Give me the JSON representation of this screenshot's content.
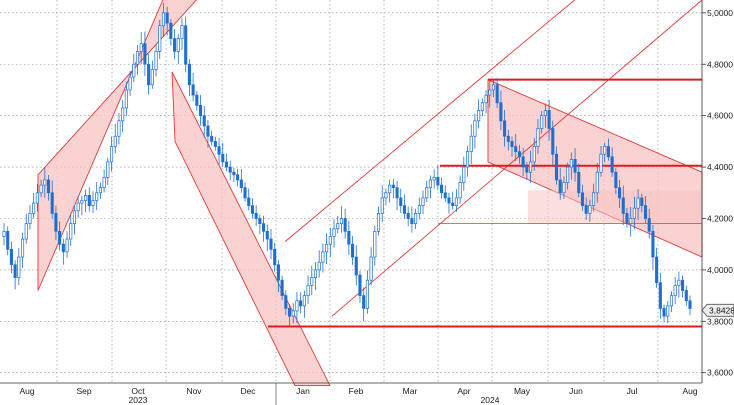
{
  "chart_data": {
    "type": "candlestick",
    "title": "",
    "xlabel": "",
    "ylabel": "",
    "ylim": [
      3.56,
      5.05
    ],
    "yticks": [
      {
        "value": 3.6,
        "label": "3,6000"
      },
      {
        "value": 3.8,
        "label": "3,8000"
      },
      {
        "value": 4.0,
        "label": "4,0000"
      },
      {
        "value": 4.2,
        "label": "4,2000"
      },
      {
        "value": 4.4,
        "label": "4,4000"
      },
      {
        "value": 4.6,
        "label": "4,6000"
      },
      {
        "value": 4.8,
        "label": "4,8000"
      },
      {
        "value": 5.0,
        "label": "5,0000"
      }
    ],
    "xticks": [
      "Aug",
      "Sep",
      "Oct",
      "Nov",
      "Dec",
      "Jan",
      "Feb",
      "Mar",
      "Apr",
      "May",
      "Jun",
      "Jul",
      "Aug"
    ],
    "years": [
      {
        "label": "2023",
        "under": "Oct"
      },
      {
        "label": "2024",
        "under": "Apr"
      }
    ],
    "last_price": {
      "value": 3.8428,
      "label": "3,8428"
    },
    "grid": true,
    "colors": {
      "up": "#1f6fd1",
      "down": "#1f6fd1",
      "channel_fill": "#f8c3c3",
      "channel_line": "#e03a3a",
      "level_line": "#d81e1e",
      "grid": "#8a8a8a"
    },
    "closes": [
      4.15,
      4.08,
      4.02,
      3.97,
      4.05,
      4.12,
      4.18,
      4.22,
      4.26,
      4.3,
      4.33,
      4.35,
      4.3,
      4.22,
      4.15,
      4.1,
      4.07,
      4.12,
      4.18,
      4.23,
      4.26,
      4.27,
      4.29,
      4.25,
      4.27,
      4.3,
      4.32,
      4.36,
      4.42,
      4.48,
      4.52,
      4.58,
      4.63,
      4.7,
      4.75,
      4.8,
      4.85,
      4.88,
      4.8,
      4.72,
      4.78,
      4.85,
      4.95,
      5.0,
      4.96,
      4.9,
      4.85,
      4.9,
      4.95,
      4.8,
      4.72,
      4.68,
      4.64,
      4.6,
      4.56,
      4.52,
      4.5,
      4.48,
      4.45,
      4.42,
      4.4,
      4.38,
      4.37,
      4.35,
      4.32,
      4.28,
      4.25,
      4.22,
      4.2,
      4.18,
      4.15,
      4.12,
      4.08,
      4.02,
      3.96,
      3.9,
      3.85,
      3.82,
      3.84,
      3.88,
      3.86,
      3.9,
      3.94,
      3.97,
      4.0,
      4.03,
      4.07,
      4.1,
      4.13,
      4.16,
      4.18,
      4.2,
      4.15,
      4.1,
      4.05,
      3.98,
      3.9,
      3.85,
      3.96,
      4.05,
      4.15,
      4.22,
      4.28,
      4.3,
      4.33,
      4.32,
      4.28,
      4.25,
      4.22,
      4.2,
      4.18,
      4.22,
      4.25,
      4.28,
      4.32,
      4.35,
      4.36,
      4.33,
      4.3,
      4.28,
      4.26,
      4.25,
      4.28,
      4.34,
      4.4,
      4.46,
      4.52,
      4.58,
      4.62,
      4.65,
      4.68,
      4.7,
      4.72,
      4.65,
      4.58,
      4.52,
      4.5,
      4.48,
      4.46,
      4.44,
      4.4,
      4.38,
      4.42,
      4.48,
      4.55,
      4.6,
      4.62,
      4.55,
      4.45,
      4.35,
      4.3,
      4.34,
      4.4,
      4.43,
      4.38,
      4.3,
      4.25,
      4.22,
      4.25,
      4.3,
      4.38,
      4.45,
      4.48,
      4.44,
      4.38,
      4.32,
      4.28,
      4.22,
      4.18,
      4.2,
      4.24,
      4.28,
      4.25,
      4.2,
      4.15,
      4.05,
      3.95,
      3.85,
      3.82,
      3.86,
      3.9,
      3.94,
      3.96,
      3.92,
      3.88,
      3.85
    ]
  }
}
